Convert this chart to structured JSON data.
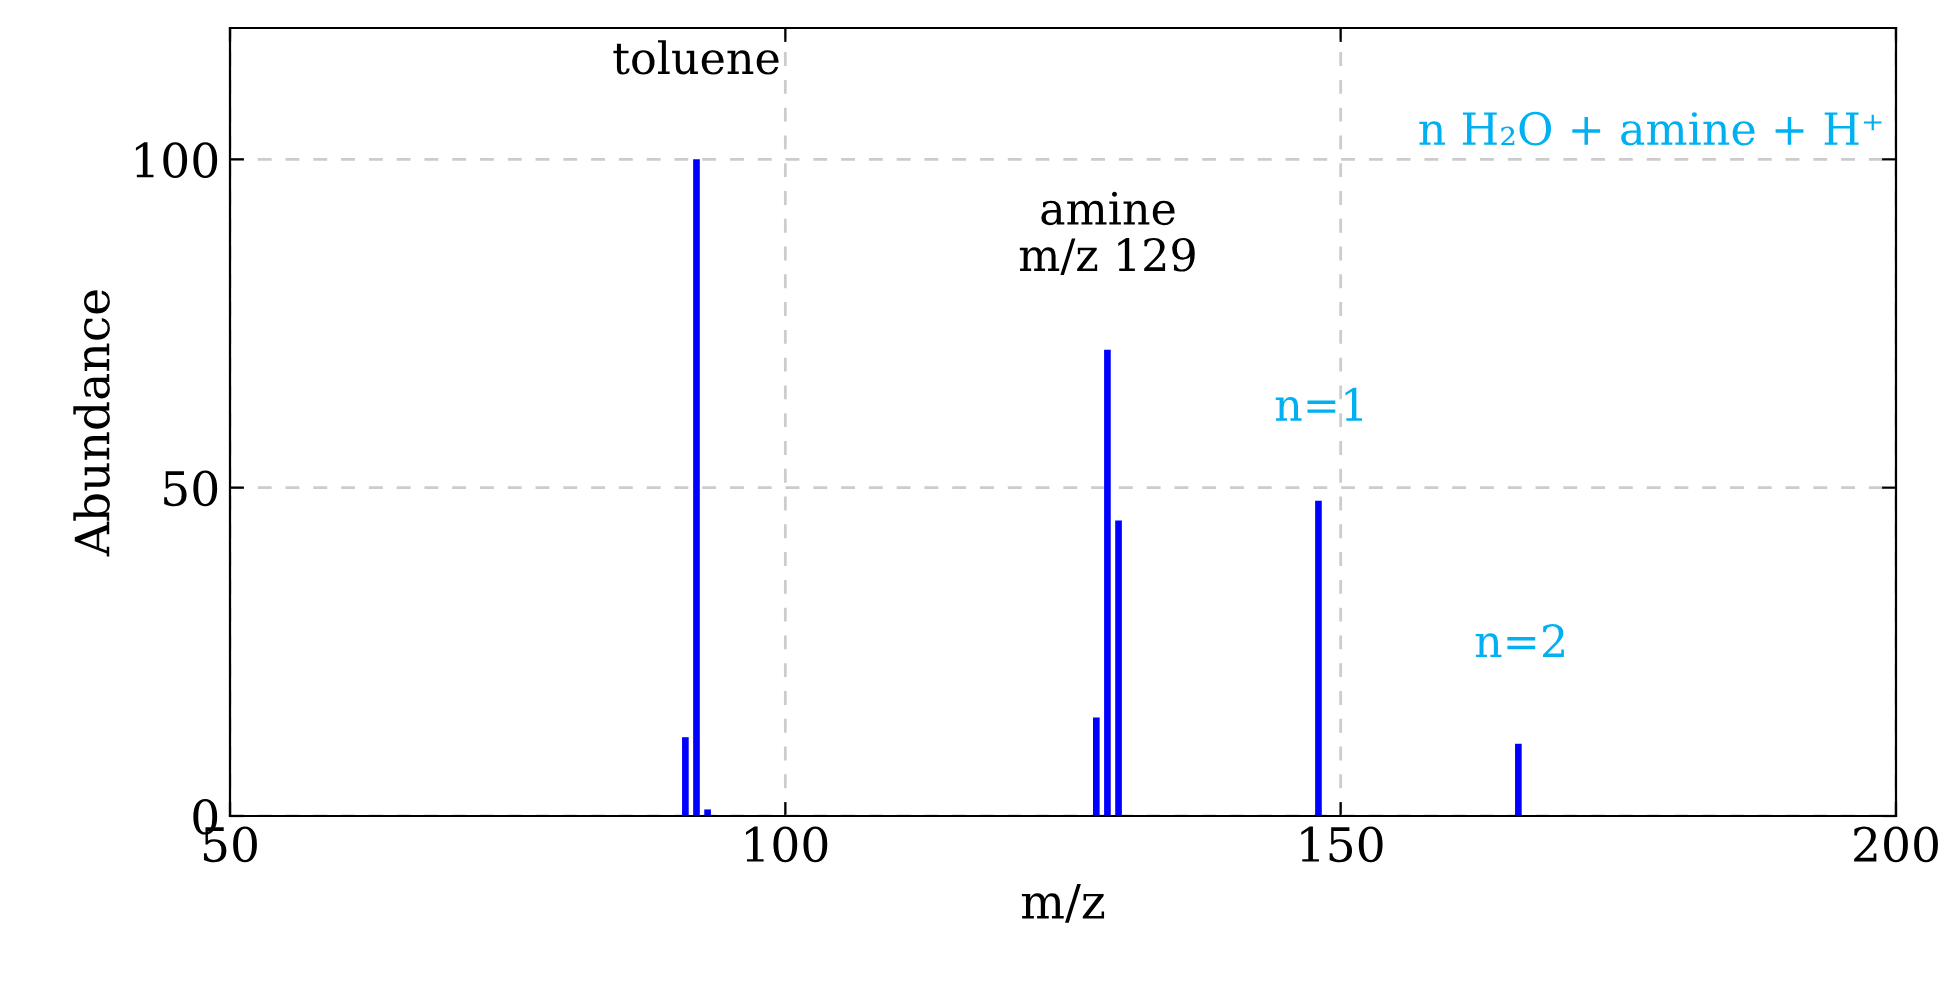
{
  "chart_data": {
    "type": "bar",
    "xlabel": "m/z",
    "ylabel": "Abundance",
    "x": [
      91,
      92,
      93,
      128,
      129,
      130,
      148,
      166
    ],
    "values": [
      12,
      100,
      1,
      15,
      71,
      45,
      48,
      11
    ],
    "color": "#0000ff",
    "xlim": [
      50,
      200
    ],
    "xticks": [
      50,
      100,
      150,
      200
    ],
    "ylim": [
      0,
      120
    ],
    "yticks": [
      0,
      50,
      100
    ],
    "grid": true,
    "line_style": "dashed",
    "annotations": [
      "toluene",
      "amine\nm/z 129",
      "n H₂O + amine + H⁺",
      "n=1",
      "n=2"
    ]
  }
}
